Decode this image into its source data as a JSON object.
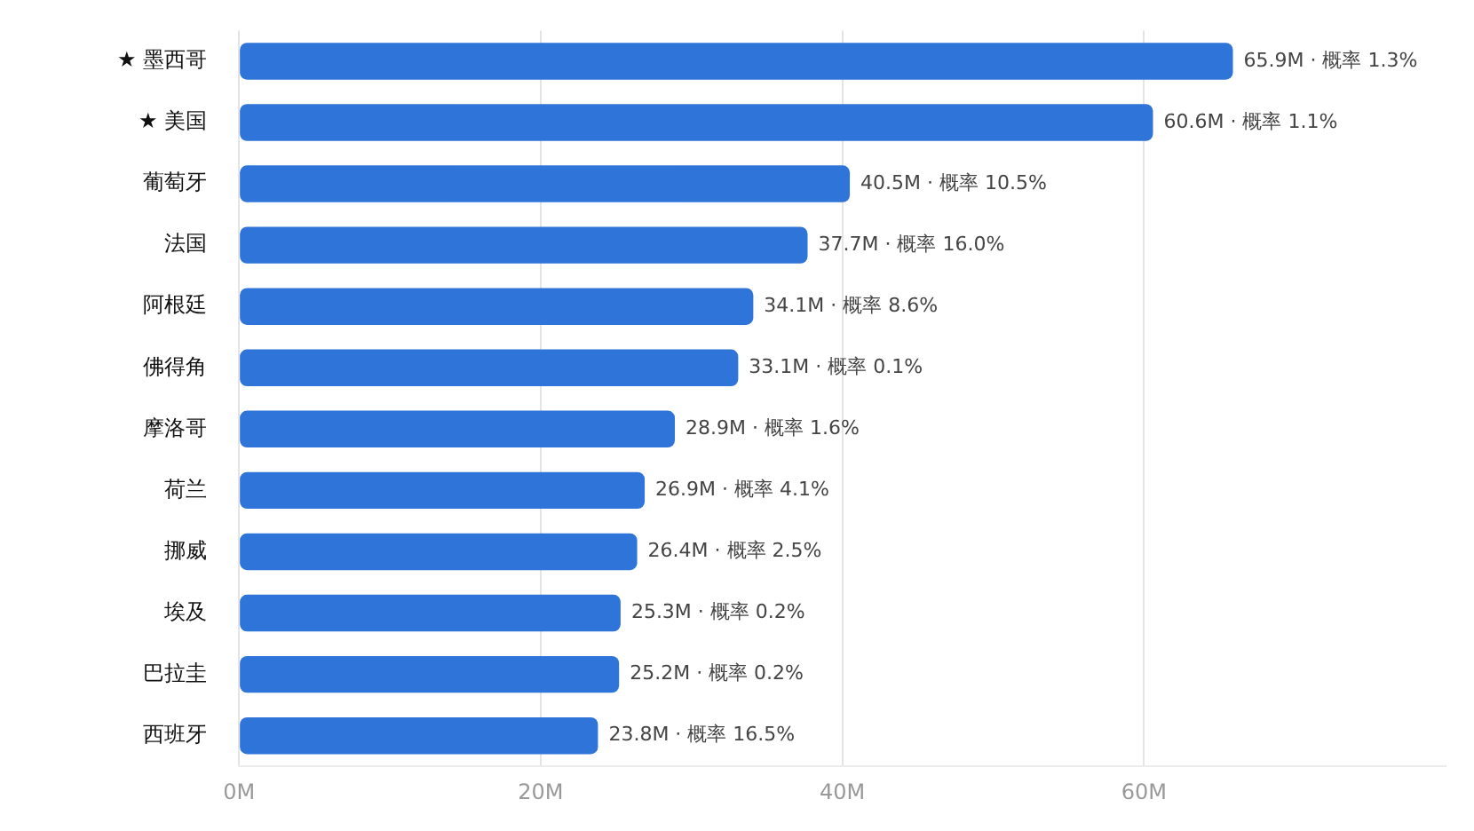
{
  "chart_data": {
    "type": "bar",
    "orientation": "horizontal",
    "categories": [
      "★ 墨西哥",
      "★ 美国",
      "葡萄牙",
      "法国",
      "阿根廷",
      "佛得角",
      "摩洛哥",
      "荷兰",
      "挪威",
      "埃及",
      "巴拉圭",
      "西班牙"
    ],
    "values": [
      65900000,
      60600000,
      40500000,
      37700000,
      34100000,
      33100000,
      28900000,
      26900000,
      26400000,
      25300000,
      25200000,
      23800000
    ],
    "value_labels": [
      "65.9M · 概率 1.3%",
      "60.6M · 概率 1.1%",
      "40.5M · 概率 10.5%",
      "37.7M · 概率 16.0%",
      "34.1M · 概率 8.6%",
      "33.1M · 概率 0.1%",
      "28.9M · 概率 1.6%",
      "26.9M · 概率 4.1%",
      "26.4M · 概率 2.5%",
      "25.3M · 概率 0.2%",
      "25.2M · 概率 0.2%",
      "23.8M · 概率 16.5%"
    ],
    "color": "#2f74d8",
    "xlim": [
      0,
      80000000
    ],
    "xticks": [
      {
        "value": 0,
        "label": "0M"
      },
      {
        "value": 20000000,
        "label": "20M"
      },
      {
        "value": 40000000,
        "label": "40M"
      },
      {
        "value": 60000000,
        "label": "60M"
      }
    ],
    "grid": "x",
    "legend": false
  }
}
